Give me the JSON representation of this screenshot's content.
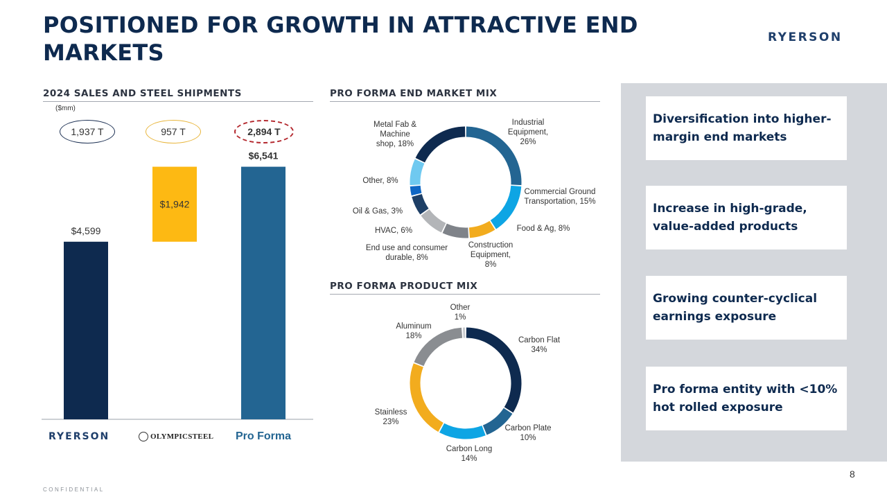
{
  "title": "POSITIONED FOR GROWTH IN ATTRACTIVE END MARKETS",
  "brand": "RYERSON",
  "page_number": "8",
  "confidential": "CONFIDENTIAL",
  "sections": {
    "sales": "2024 SALES AND STEEL SHIPMENTS",
    "end_market": "PRO FORMA END MARKET MIX",
    "product": "PRO FORMA PRODUCT MIX"
  },
  "unit_label": "($mm)",
  "shipments": [
    {
      "label": "1,937 T",
      "color": "#1b2f52",
      "style": "solid"
    },
    {
      "label": "957 T",
      "color": "#e8b53a",
      "style": "solid"
    },
    {
      "label": "2,894 T",
      "color": "#b3262c",
      "style": "dashed"
    }
  ],
  "company_labels": {
    "ryerson": "RYERSON",
    "olympic": "OLYMPICSTEEL",
    "pro_forma": "Pro Forma"
  },
  "highlights": [
    "Diversification into higher-margin end markets",
    "Increase in high-grade, value-added products",
    "Growing counter-cyclical earnings exposure",
    "Pro forma entity with <10% hot rolled exposure"
  ],
  "chart_data": [
    {
      "type": "bar",
      "title": "2024 SALES AND STEEL SHIPMENTS",
      "ylabel": "($mm)",
      "categories": [
        "Ryerson",
        "Olympic Steel",
        "Pro Forma"
      ],
      "bars": [
        {
          "name": "Ryerson",
          "base": 0,
          "value": 4599,
          "label": "$4,599",
          "color": "#0e2a4f",
          "label_pos": "above"
        },
        {
          "name": "Olympic Steel",
          "base": 4599,
          "value": 1942,
          "label": "$1,942",
          "color": "#fdb913",
          "label_pos": "inside"
        },
        {
          "name": "Pro Forma",
          "base": 0,
          "value": 6541,
          "label": "$6,541",
          "color": "#236592",
          "label_pos": "above"
        }
      ],
      "ylim": [
        0,
        7000
      ]
    },
    {
      "type": "pie",
      "title": "PRO FORMA END MARKET MIX",
      "donut": true,
      "slices": [
        {
          "label": [
            "Industrial",
            "Equipment,",
            "26%"
          ],
          "value": 26,
          "color": "#236592"
        },
        {
          "label": [
            "Commercial Ground",
            "Transportation, 15%"
          ],
          "value": 15,
          "color": "#0ea5e4"
        },
        {
          "label": [
            "Food & Ag, 8%"
          ],
          "value": 8,
          "color": "#f2ac1e"
        },
        {
          "label": [
            "Construction",
            "Equipment,",
            "8%"
          ],
          "value": 8,
          "color": "#7f8389"
        },
        {
          "label": [
            "End use and consumer",
            "durable, 8%"
          ],
          "value": 8,
          "color": "#b3b5b8"
        },
        {
          "label": [
            "HVAC, 6%"
          ],
          "value": 6,
          "color": "#1e3f66"
        },
        {
          "label": [
            "Oil & Gas, 3%"
          ],
          "value": 3,
          "color": "#0f66c4"
        },
        {
          "label": [
            "Other, 8%"
          ],
          "value": 8,
          "color": "#6fc9f0"
        },
        {
          "label": [
            "Metal Fab &",
            "Machine",
            "shop, 18%"
          ],
          "value": 18,
          "color": "#0e2a4f"
        }
      ]
    },
    {
      "type": "pie",
      "title": "PRO FORMA PRODUCT MIX",
      "donut": true,
      "slices": [
        {
          "label": [
            "Carbon Flat",
            "34%"
          ],
          "value": 34,
          "color": "#0e2a4f"
        },
        {
          "label": [
            "Carbon Plate",
            "10%"
          ],
          "value": 10,
          "color": "#236592"
        },
        {
          "label": [
            "Carbon Long",
            "14%"
          ],
          "value": 14,
          "color": "#0ea5e4"
        },
        {
          "label": [
            "Stainless",
            "23%"
          ],
          "value": 23,
          "color": "#f2ac1e"
        },
        {
          "label": [
            "Aluminum",
            "18%"
          ],
          "value": 18,
          "color": "#8a8d91"
        },
        {
          "label": [
            "Other",
            "1%"
          ],
          "value": 1,
          "color": "#c9cbce"
        }
      ]
    }
  ]
}
